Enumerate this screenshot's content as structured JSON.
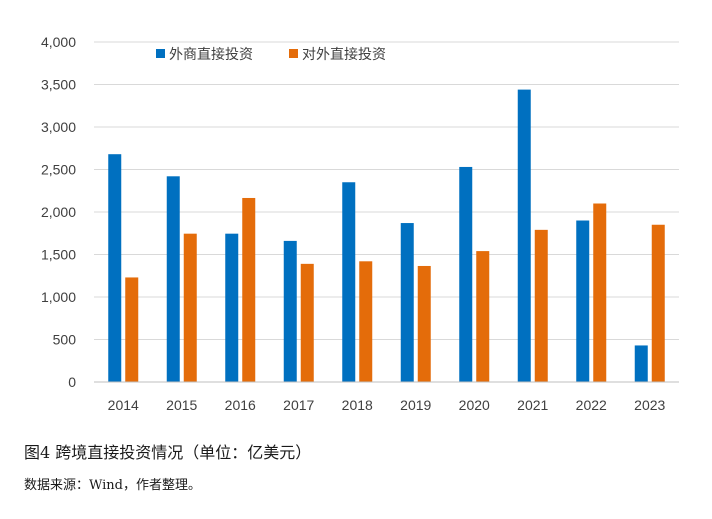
{
  "caption": "图4  跨境直接投资情况（单位：亿美元）",
  "source": "数据来源：Wind，作者整理。",
  "chart_data": {
    "type": "bar",
    "categories": [
      "2014",
      "2015",
      "2016",
      "2017",
      "2018",
      "2019",
      "2020",
      "2021",
      "2022",
      "2023"
    ],
    "series": [
      {
        "name": "外商直接投资",
        "color": "#0070C0",
        "values": [
          2680,
          2420,
          1745,
          1660,
          2350,
          1870,
          2530,
          3440,
          1900,
          430
        ]
      },
      {
        "name": "对外直接投资",
        "color": "#E46C0A",
        "values": [
          1230,
          1745,
          2165,
          1390,
          1420,
          1365,
          1540,
          1790,
          2100,
          1850
        ]
      }
    ],
    "ylim": [
      0,
      4000
    ],
    "yticks": [
      0,
      500,
      1000,
      1500,
      2000,
      2500,
      3000,
      3500,
      4000
    ],
    "ytick_labels": [
      "0",
      "500",
      "1,000",
      "1,500",
      "2,000",
      "2,500",
      "3,000",
      "3,500",
      "4,000"
    ],
    "grid": true,
    "legend_position": "top-left"
  }
}
